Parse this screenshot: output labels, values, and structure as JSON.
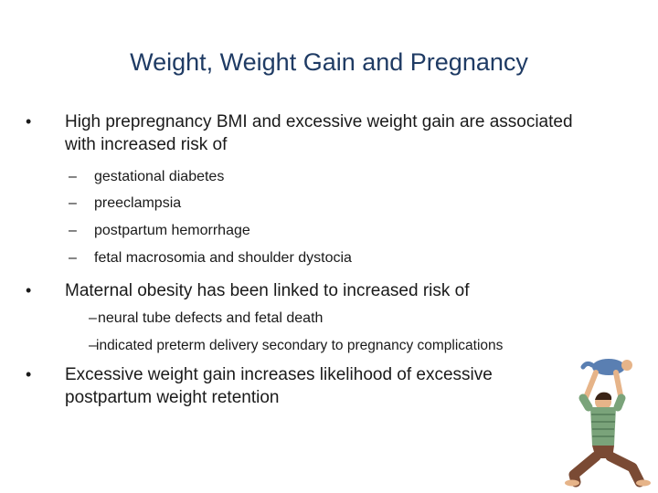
{
  "slide": {
    "title": "Weight, Weight Gain and Pregnancy",
    "bullets": [
      {
        "marker": "•",
        "text": "High prepregnancy BMI and excessive weight gain are associated with increased risk of",
        "subitems": [
          {
            "marker": "–",
            "text": "gestational diabetes"
          },
          {
            "marker": "–",
            "text": "preeclampsia"
          },
          {
            "marker": "–",
            "text": "postpartum hemorrhage"
          },
          {
            "marker": "–",
            "text": "fetal macrosomia and shoulder dystocia"
          }
        ]
      },
      {
        "marker": "•",
        "text": "Maternal obesity has been linked to increased risk of",
        "subitems": [
          {
            "marker": "–",
            "text": "neural tube defects and fetal death"
          },
          {
            "marker": "–",
            "text": "indicated preterm delivery secondary to pregnancy complications"
          }
        ]
      },
      {
        "marker": "•",
        "text": "Excessive weight gain increases likelihood of excessive postpartum weight retention",
        "subitems": []
      }
    ]
  },
  "illustration": {
    "icon": "parent-lifting-baby-icon",
    "colors": {
      "shirt": "#7aa37a",
      "pants": "#7a4a34",
      "baby": "#5a7fb2",
      "skin": "#e6b489",
      "hair": "#3b2416"
    }
  }
}
